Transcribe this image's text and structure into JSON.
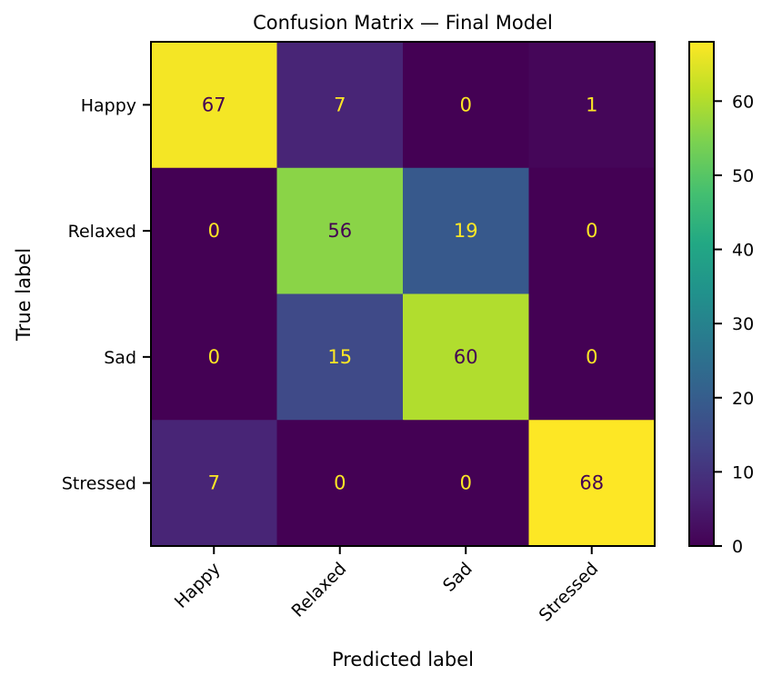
{
  "chart_data": {
    "type": "heatmap",
    "title": "Confusion Matrix — Final Model",
    "xlabel": "Predicted label",
    "ylabel": "True label",
    "x_categories": [
      "Happy",
      "Relaxed",
      "Sad",
      "Stressed"
    ],
    "y_categories": [
      "Happy",
      "Relaxed",
      "Sad",
      "Stressed"
    ],
    "values": [
      [
        67,
        7,
        0,
        1
      ],
      [
        0,
        56,
        19,
        0
      ],
      [
        0,
        15,
        60,
        0
      ],
      [
        7,
        0,
        0,
        68
      ]
    ],
    "colormap": "viridis",
    "colorbar": {
      "range": [
        0,
        68
      ],
      "ticks": [
        0,
        10,
        20,
        30,
        40,
        50,
        60
      ]
    },
    "text_colors": {
      "light": "#fde725",
      "dark": "#440154"
    },
    "grid": false,
    "legend": "colorbar-right"
  }
}
